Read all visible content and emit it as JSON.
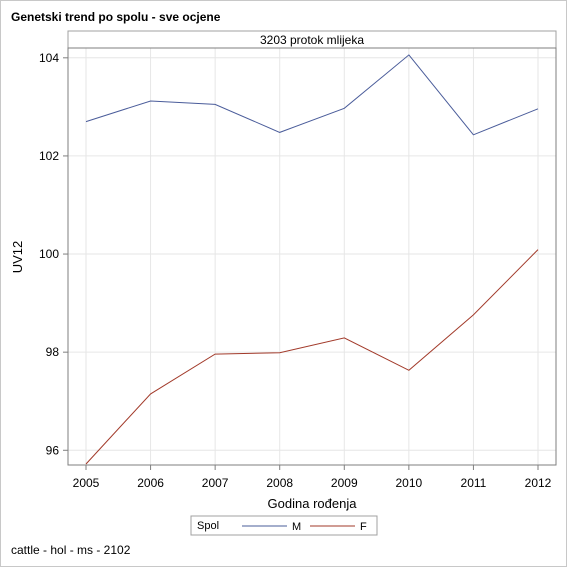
{
  "chart_data": {
    "type": "line",
    "title": "Genetski trend po spolu - sve ocjene",
    "panel_label": "3203 protok mlijeka",
    "xlabel": "Godina rođenja",
    "ylabel": "UV12",
    "x": [
      2005,
      2006,
      2007,
      2008,
      2009,
      2010,
      2011,
      2012
    ],
    "x_tick_labels": [
      "2005",
      "2006",
      "2007",
      "2008",
      "2009",
      "2010",
      "2011",
      "2012"
    ],
    "y_ticks": [
      96,
      98,
      100,
      102,
      104
    ],
    "y_tick_labels": [
      "96",
      "98",
      "100",
      "102",
      "104"
    ],
    "xlim": [
      2005,
      2012
    ],
    "ylim": [
      95.7,
      104.2
    ],
    "grid": true,
    "legend": {
      "title": "Spol",
      "placement": "bottom"
    },
    "series": [
      {
        "name": "M",
        "color": "#4a5c9a",
        "values": [
          102.7,
          103.12,
          103.05,
          102.48,
          102.97,
          104.06,
          102.43,
          102.96
        ]
      },
      {
        "name": "F",
        "color": "#a23a2a",
        "values": [
          95.72,
          97.15,
          97.96,
          97.99,
          98.29,
          97.63,
          98.76,
          100.09
        ]
      }
    ]
  },
  "footnote": "cattle - hol - ms - 2102"
}
